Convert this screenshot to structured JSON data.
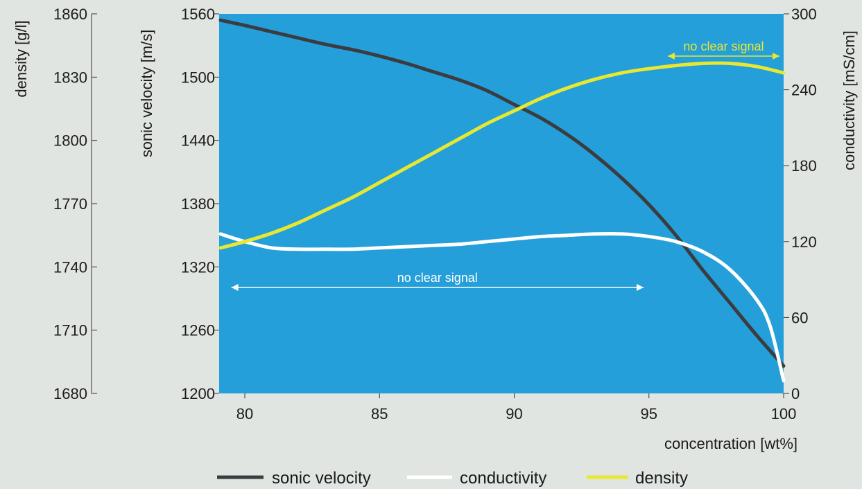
{
  "chart_data": {
    "type": "line",
    "xlabel": "concentration [wt%]",
    "x_ticks": [
      80,
      85,
      90,
      95,
      100
    ],
    "xlim": [
      79.1,
      100
    ],
    "axes": {
      "density": {
        "label": "density [g/l]",
        "ticks": [
          1680,
          1710,
          1740,
          1770,
          1800,
          1830,
          1860
        ],
        "range": [
          1680,
          1860
        ]
      },
      "sonic_velocity": {
        "label": "sonic velocity [m/s]",
        "ticks": [
          1200,
          1260,
          1320,
          1380,
          1440,
          1500,
          1560
        ],
        "range": [
          1200,
          1560
        ]
      },
      "conductivity": {
        "label": "conductivity [mS/cm]",
        "ticks": [
          0,
          60,
          120,
          180,
          240,
          300
        ],
        "range": [
          0,
          300
        ]
      }
    },
    "series": [
      {
        "name": "sonic velocity",
        "axis": "sonic_velocity",
        "color": "#3a3c40",
        "x": [
          79.1,
          80,
          81,
          82,
          83,
          84,
          85,
          86,
          87,
          88,
          89,
          90,
          91,
          92,
          93,
          94,
          95,
          96,
          97,
          98,
          99,
          100
        ],
        "y": [
          1554,
          1549,
          1543,
          1537,
          1531,
          1526,
          1520,
          1513,
          1505,
          1497,
          1487,
          1474,
          1461,
          1445,
          1426,
          1404,
          1379,
          1350,
          1317,
          1286,
          1255,
          1226
        ]
      },
      {
        "name": "conductivity",
        "axis": "conductivity",
        "color": "#ffffff",
        "x": [
          79.1,
          80,
          81,
          82,
          83,
          84,
          85,
          86,
          87,
          88,
          89,
          90,
          91,
          92,
          93,
          94,
          95,
          96,
          97,
          98,
          99,
          99.5,
          100
        ],
        "y": [
          126,
          120,
          115,
          114,
          114,
          114,
          115,
          116,
          117,
          118,
          120,
          122,
          124,
          125,
          126,
          126,
          124,
          120,
          112,
          98,
          74,
          53,
          10
        ]
      },
      {
        "name": "density",
        "axis": "density",
        "color": "#e8e830",
        "x": [
          79.1,
          80,
          81,
          82,
          83,
          84,
          85,
          86,
          87,
          88,
          89,
          90,
          91,
          92,
          93,
          94,
          95,
          96,
          97,
          98,
          99,
          100
        ],
        "y": [
          1749,
          1752,
          1756,
          1761,
          1767,
          1773,
          1780,
          1787,
          1794,
          1801,
          1808,
          1814,
          1820,
          1825,
          1829,
          1832,
          1834,
          1835.5,
          1836.5,
          1836.5,
          1835,
          1832
        ]
      }
    ],
    "annotations": [
      {
        "text": "no clear signal",
        "x_from": 79.5,
        "x_to": 94.8,
        "color": "#ffffff"
      },
      {
        "text": "no clear signal",
        "x_from": 95.7,
        "x_to": 100,
        "color": "#e8e830"
      }
    ],
    "legend": {
      "position": "bottom"
    },
    "plot_background": "#259fda",
    "page_background": "#e1e5e2"
  }
}
